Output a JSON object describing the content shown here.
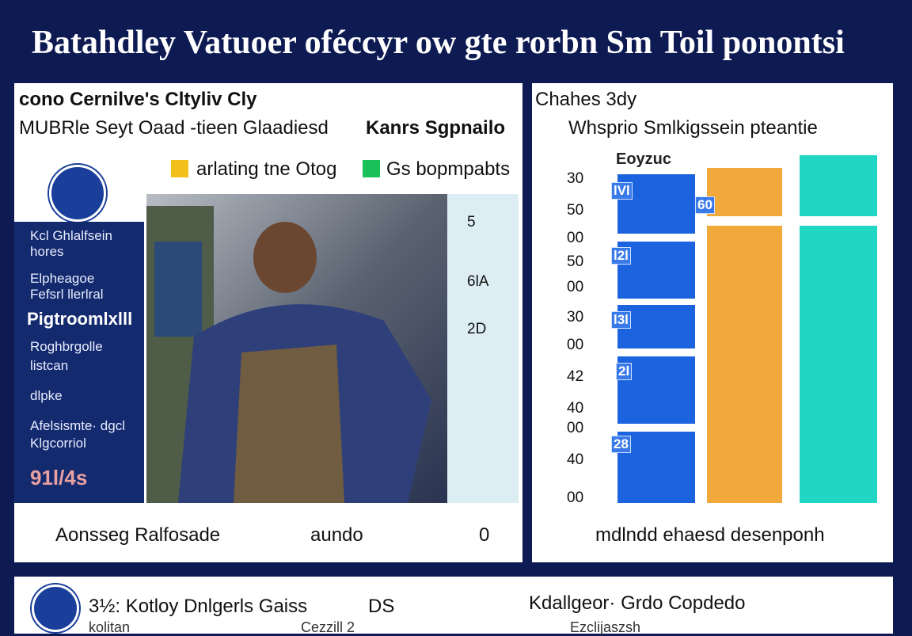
{
  "title": "Batahdley Vatuoer oféccyr ow gte rorbn Sm Toil ponontsi",
  "left_panel": {
    "heading": "cono Cernilve's Cltyliv Cly",
    "subheading": "MUBRle Seyt Oaad -tieen Glaadiesd",
    "side_heading": "Kanrs Sgpnailo",
    "legend": [
      "arlating tne Otog",
      "Gs bopmpabts"
    ],
    "sidebar": [
      "Kcl Ghlalfsein",
      "hores",
      "Elpheagoe",
      "Fefsrl llerlral",
      "Pigtroomlxlll",
      "Roghbrgolle",
      "listcan",
      "dlpke",
      "Afelsismte· dgcl",
      "Klgcorriol",
      "91l/4s"
    ],
    "strip": [
      "5",
      "6lA",
      "2D"
    ],
    "footer": [
      "Aonsseg Ralfosade",
      "aundo",
      "0"
    ]
  },
  "right_panel": {
    "heading": "Chahes 3dy",
    "subheading": "Whsprio Smlkigssein pteantie",
    "legend_label": "Eoyzuc",
    "axis_labels": [
      "30",
      "50",
      "00",
      "50",
      "00",
      "30",
      "00",
      "42",
      "40",
      "00",
      "40",
      "00"
    ],
    "block_labels": [
      "lVl",
      "60",
      "l2l",
      "l3l",
      "2l",
      "28"
    ],
    "footer": "mdlndd ehaesd desenponh"
  },
  "bottom": {
    "left": "3½: Kotloy Dnlgerls Gaiss",
    "code": "DS",
    "right": "Kdallgeor· Grdo Copdedo",
    "sub": [
      "kolitan",
      "Cezzill 2",
      "Ezclijaszsh"
    ]
  }
}
